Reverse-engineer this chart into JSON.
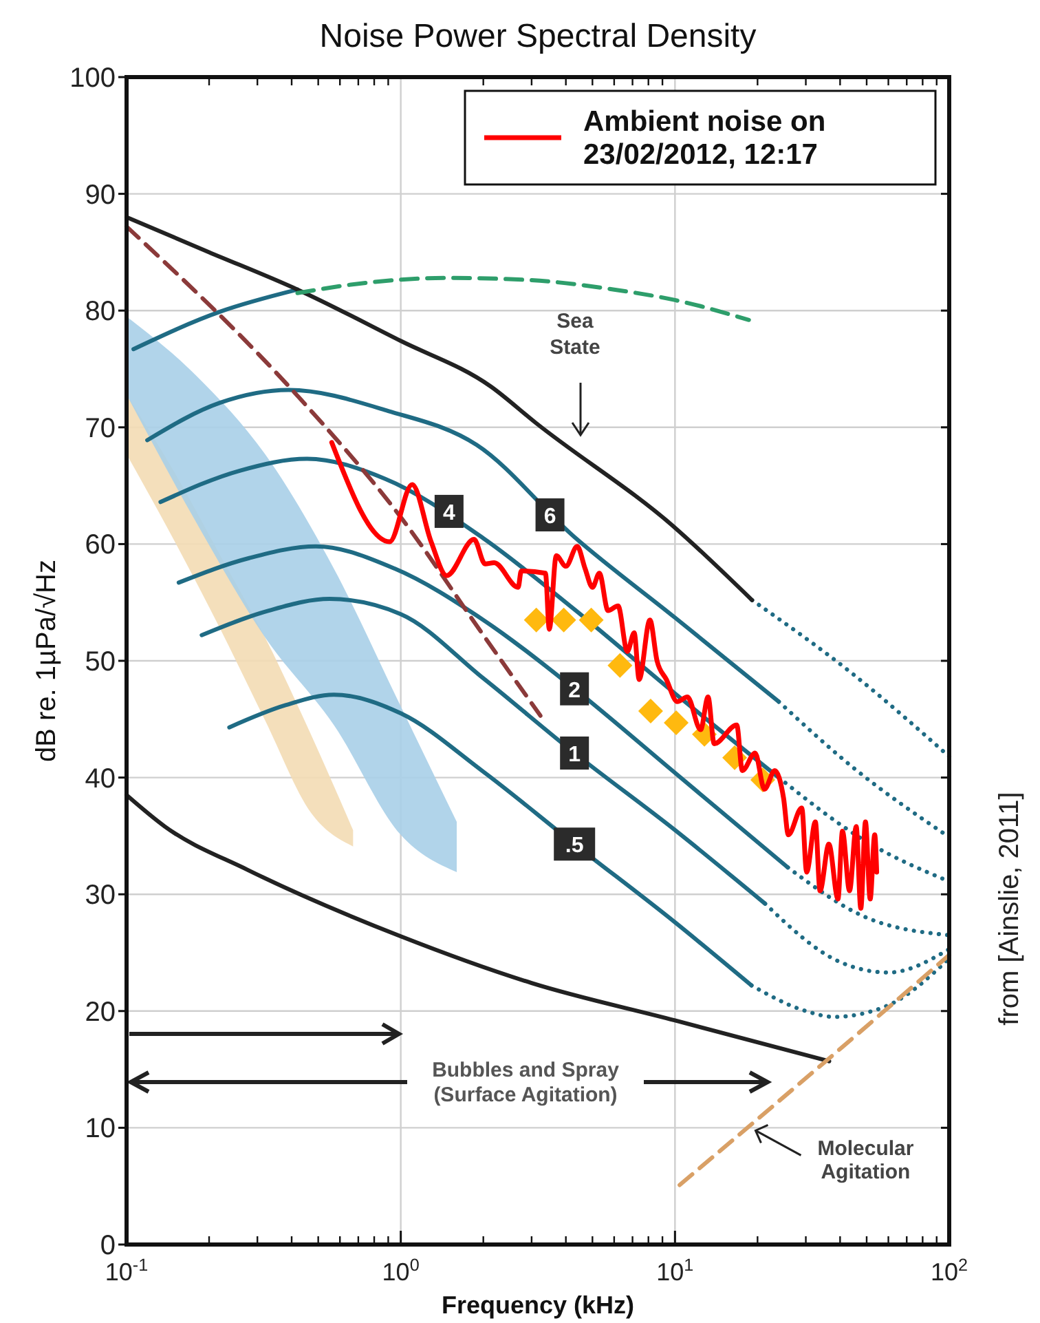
{
  "chart_data": {
    "type": "line",
    "title": "Noise Power Spectral Density",
    "xlabel": "Frequency (kHz)",
    "ylabel": "dB re. 1µPa/√Hz",
    "log": "x",
    "grid": true,
    "legend": "top right",
    "xlim": [
      0.1,
      100
    ],
    "xticks": [
      {
        "value": 0.1,
        "label": "10$^{-1}$"
      },
      {
        "value": 1,
        "label": "10$^{0}$"
      },
      {
        "value": 10,
        "label": "10$^{1}$"
      },
      {
        "value": 100,
        "label": "10$^{2}$"
      }
    ],
    "ylim": [
      0,
      100
    ],
    "yticks": [
      0,
      10,
      20,
      30,
      40,
      50,
      60,
      70,
      80,
      90,
      100
    ],
    "series": [
      {
        "color": "#f3dcb4",
        "x": [
          0.1,
          0.15,
          0.22,
          0.32,
          0.47,
          0.67
        ],
        "values": [
          null,
          null,
          null,
          null,
          null,
          null
        ],
        "upper": [
          72.8,
          66.1,
          59.0,
          52.0,
          43.7,
          35.5
        ],
        "lower": [
          67.7,
          60.2,
          52.7,
          44.9,
          37.0,
          34.1
        ]
      },
      {
        "color": "#a9cfe8",
        "x": [
          0.1,
          0.18,
          0.32,
          0.57,
          1.0,
          1.6
        ],
        "values": [
          null,
          null,
          null,
          null,
          null,
          null
        ],
        "upper": [
          79.5,
          74.4,
          67.7,
          57.9,
          46.1,
          36.2
        ],
        "lower": [
          72.8,
          61.8,
          52.0,
          44.5,
          35.1,
          31.9
        ]
      },
      {
        "color": "#1f6b84",
        "line_style": "solid",
        "x": [
          0.106,
          0.219,
          0.42
        ],
        "values": [
          76.7,
          79.9,
          81.8
        ]
      },
      {
        "color": "#1f6b84",
        "line_style": "solid",
        "x": [
          0.119,
          0.219,
          0.39,
          0.9,
          1.89,
          4.3,
          10,
          23.9
        ],
        "values": [
          68.9,
          72.1,
          73.2,
          71.4,
          68.5,
          60.6,
          53.7,
          46.5
        ]
      },
      {
        "color": "#1f6b84",
        "line_style": "solid",
        "x": [
          0.133,
          0.26,
          0.455,
          0.875,
          2,
          4.3,
          10,
          23.9
        ],
        "values": [
          63.6,
          66.3,
          67.3,
          65.6,
          60.5,
          54.4,
          47.2,
          40.0
        ]
      },
      {
        "color": "#1f6b84",
        "line_style": "solid",
        "x": [
          0.155,
          0.28,
          0.49,
          0.95,
          2,
          4.3,
          10,
          25.8
        ],
        "values": [
          56.7,
          58.8,
          59.8,
          57.9,
          53.5,
          47.6,
          40.4,
          32.3
        ]
      },
      {
        "color": "#1f6b84",
        "line_style": "solid",
        "x": [
          0.188,
          0.33,
          0.55,
          1,
          2,
          4.3,
          10,
          21.3
        ],
        "values": [
          52.2,
          54.3,
          55.3,
          54.0,
          48.5,
          42.1,
          35.5,
          29.2
        ]
      },
      {
        "color": "#1f6b84",
        "line_style": "solid",
        "x": [
          0.237,
          0.38,
          0.57,
          1,
          2,
          4.3,
          10,
          19
        ],
        "values": [
          44.3,
          46.2,
          47.1,
          45.5,
          40.5,
          34.3,
          27.6,
          22.2
        ]
      },
      {
        "color": "#1f6b84",
        "line_style": "dotted",
        "x": [
          23.9,
          44.4,
          100
        ],
        "values": [
          46.5,
          40.9,
          34.9
        ]
      },
      {
        "color": "#1f6b84",
        "line_style": "dotted",
        "x": [
          23.9,
          50,
          100
        ],
        "values": [
          40.0,
          34.5,
          31.1
        ]
      },
      {
        "color": "#1f6b84",
        "line_style": "dotted",
        "x": [
          25.8,
          50,
          100
        ],
        "values": [
          32.3,
          28.0,
          26.5
        ]
      },
      {
        "color": "#1f6b84",
        "line_style": "dotted",
        "x": [
          21.3,
          40,
          60,
          100
        ],
        "values": [
          29.2,
          24.2,
          23.3,
          25.3
        ]
      },
      {
        "color": "#1f6b84",
        "line_style": "dotted",
        "x": [
          19,
          30,
          38,
          60,
          100
        ],
        "values": [
          22.2,
          20.0,
          19.5,
          20.5,
          24.5
        ]
      },
      {
        "color": "#1f6b84",
        "line_style": "dotted",
        "x": [
          19.1,
          44.9,
          100
        ],
        "values": [
          55.2,
          48.8,
          41.8
        ]
      },
      {
        "color": "#222222",
        "line_style": "solid",
        "x": [
          0.1,
          0.2,
          0.42,
          1,
          2.13,
          3.1,
          10,
          19.1
        ],
        "values": [
          88.0,
          85.0,
          81.8,
          77.4,
          73.5,
          70.4,
          61.4,
          55.2
        ]
      },
      {
        "color": "#222222",
        "line_style": "solid",
        "x": [
          0.1,
          0.138,
          0.276,
          1,
          3,
          10,
          36.5
        ],
        "values": [
          38.5,
          35.8,
          32.1,
          26.4,
          22.4,
          19.2,
          15.7
        ]
      },
      {
        "color": "#2e9e6b",
        "line_style": "dashed",
        "x": [
          0.42,
          0.7,
          1.5,
          3,
          6,
          10,
          18.6
        ],
        "values": [
          81.5,
          82.3,
          82.8,
          82.6,
          81.8,
          80.9,
          79.2
        ]
      },
      {
        "color": "#8b3a3a",
        "line_style": "dashed",
        "x": [
          0.1,
          0.42,
          1,
          2,
          3.23
        ],
        "values": [
          87.2,
          72.7,
          62.3,
          52.2,
          45.3
        ]
      },
      {
        "color": "#d9a066",
        "line_style": "dashed",
        "x": [
          10.4,
          58,
          100
        ],
        "values": [
          5.1,
          20.0,
          24.8
        ]
      },
      {
        "name": "Ambient noise on 23/02/2012, 12:17",
        "color": "#ff0000",
        "line_style": "solid",
        "x": [
          0.56,
          0.91,
          1.1,
          1.29,
          1.47,
          1.85,
          2.03,
          2.19,
          2.68,
          2.75,
          3.37,
          3.48,
          3.69,
          4.0,
          4.4,
          4.7,
          5.0,
          5.3,
          5.7,
          6.2,
          6.7,
          7.1,
          7.4,
          8.1,
          8.6,
          9.3,
          10.2,
          11.1,
          12.4,
          13.2,
          13.9,
          16.8,
          17.6,
          19.6,
          21.2,
          23.1,
          24.9,
          25.9,
          29.0,
          30.2,
          32.5,
          33.8,
          36.4,
          39.3,
          40.8,
          43.3,
          45.8,
          47.6,
          49.5,
          51.5,
          53.5,
          54.4
        ],
        "values": [
          68.7,
          60.2,
          65.1,
          60.2,
          57.3,
          60.4,
          58.3,
          58.4,
          56.3,
          57.7,
          57.5,
          52.7,
          59.0,
          58.1,
          59.8,
          57.9,
          56.3,
          57.5,
          54.3,
          54.7,
          50.8,
          52.4,
          48.4,
          53.5,
          50.0,
          48.4,
          46.5,
          46.9,
          44.1,
          46.9,
          42.9,
          44.5,
          40.6,
          42.1,
          39.0,
          40.6,
          38.2,
          35.1,
          37.4,
          31.9,
          36.2,
          30.3,
          34.3,
          29.6,
          35.4,
          30.3,
          35.8,
          28.8,
          36.2,
          29.6,
          35.1,
          31.9
        ]
      },
      {
        "type": "scatter",
        "marker": "diamond",
        "color": "#ffb90f",
        "x": [
          3.12,
          3.93,
          4.95,
          6.3,
          8.15,
          10.1,
          12.8,
          16.5,
          20.9
        ],
        "values": [
          53.5,
          53.5,
          53.5,
          49.6,
          45.7,
          44.7,
          43.7,
          41.7,
          39.8
        ]
      }
    ],
    "annotations": [
      "Sea State",
      {
        "text": "Molecular Agitation",
        "x": 19,
        "y": 10
      },
      {
        "text": "6",
        "x": 3.5,
        "y": 62.5
      },
      {
        "text": "4",
        "x": 1.5,
        "y": 62.8
      },
      {
        "text": "2",
        "x": 4.3,
        "y": 47.6
      },
      {
        "text": "1",
        "x": 4.3,
        "y": 42.1
      },
      {
        "text": ".5",
        "x": 4.3,
        "y": 34.3
      },
      "Bubbles and Spray (Surface Agitation)",
      "from [Ainslie, 2011]"
    ]
  }
}
